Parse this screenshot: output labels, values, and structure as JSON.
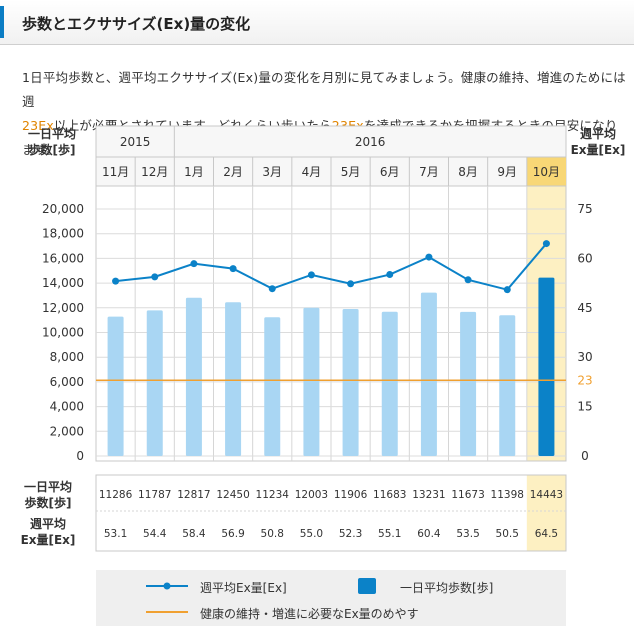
{
  "header": {
    "title": "歩数とエクササイズ(Ex)量の変化"
  },
  "description": {
    "line1": "1日平均歩数と、週平均エクササイズ(Ex)量の変化を月別に見てみましょう。健康の維持、増進のためには週",
    "line2_highlight": "23Ex",
    "line2_rest": "以上が必要とされています。どれくらい歩いたら",
    "line2_highlight2": "23Ex",
    "line2_tail": "を達成できるかを把握するときの目安になります。"
  },
  "axis_titles": {
    "left_line1": "一日平均",
    "left_line2": "歩数[歩]",
    "right_line1": "週平均",
    "right_line2": "Ex量[Ex]"
  },
  "table_labels": {
    "steps_line1": "一日平均",
    "steps_line2": "歩数[歩]",
    "ex_line1": "週平均",
    "ex_line2": "Ex量[Ex]"
  },
  "legend": {
    "ex_line": "週平均Ex量[Ex]",
    "steps_bar": "一日平均歩数[歩]",
    "threshold": "健康の維持・増進に必要なEx量のめやす"
  },
  "colors": {
    "line": "#0b82c8",
    "bar": "#a9d6f3",
    "bar_highlight": "#0b82c8",
    "threshold": "#f0a030",
    "highlight_bg": "#fdf0c2",
    "highlight_header": "#f8d776"
  },
  "chart_data": {
    "type": "bar+line",
    "years": [
      {
        "label": "2015",
        "span": 2
      },
      {
        "label": "2016",
        "span": 10
      }
    ],
    "categories": [
      "11月",
      "12月",
      "1月",
      "2月",
      "3月",
      "4月",
      "5月",
      "6月",
      "7月",
      "8月",
      "9月",
      "10月"
    ],
    "highlight_index": 11,
    "steps_display": [
      "11286",
      "11787",
      "12817",
      "12450",
      "11234",
      "12003",
      "11906",
      "11683",
      "13231",
      "11673",
      "11398",
      "14443"
    ],
    "ex_display": [
      "53.1",
      "54.4",
      "58.4",
      "56.9",
      "50.8",
      "55.0",
      "52.3",
      "55.1",
      "60.4",
      "53.5",
      "50.5",
      "64.5"
    ],
    "series": [
      {
        "name": "一日平均歩数[歩]",
        "axis": "left",
        "values": [
          11286,
          11787,
          12817,
          12450,
          11234,
          12003,
          11906,
          11683,
          13231,
          11673,
          11398,
          14443
        ]
      },
      {
        "name": "週平均Ex量[Ex]",
        "axis": "right",
        "values": [
          53.1,
          54.4,
          58.4,
          56.9,
          50.8,
          55.0,
          52.3,
          55.1,
          60.4,
          53.5,
          50.5,
          64.5
        ]
      }
    ],
    "threshold": {
      "value": 23,
      "label": "23"
    },
    "left_axis": {
      "ylim": [
        0,
        20000
      ],
      "ticks": [
        "0",
        "2,000",
        "4,000",
        "6,000",
        "8,000",
        "10,000",
        "12,000",
        "14,000",
        "16,000",
        "18,000",
        "20,000"
      ]
    },
    "right_axis": {
      "ylim": [
        0,
        75
      ],
      "ticks": [
        "0",
        "15",
        "30",
        "45",
        "60",
        "75"
      ]
    },
    "grid": true
  }
}
